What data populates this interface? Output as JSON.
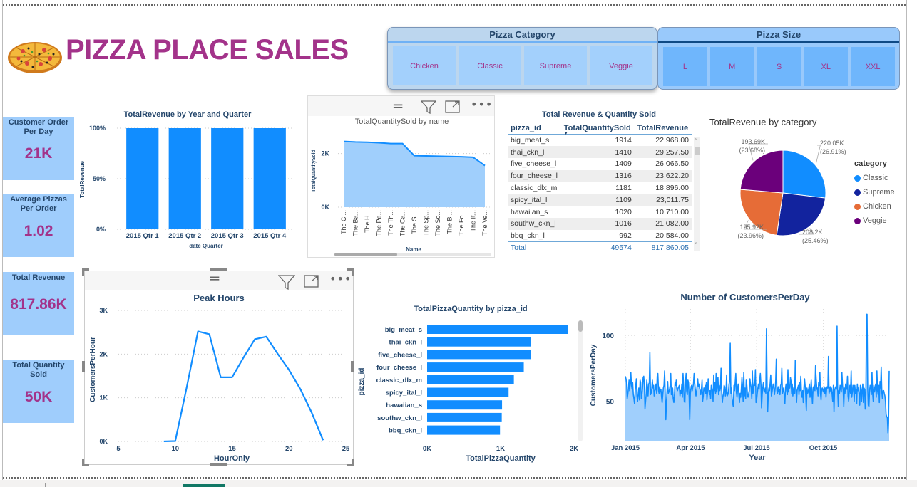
{
  "header": {
    "title": "PIZZA PLACE SALES",
    "logo_icon": "pizza-icon"
  },
  "slicers": {
    "category": {
      "title": "Pizza Category",
      "options": [
        "Chicken",
        "Classic",
        "Supreme",
        "Veggie"
      ]
    },
    "size": {
      "title": "Pizza Size",
      "options": [
        "L",
        "M",
        "S",
        "XL",
        "XXL"
      ]
    }
  },
  "cards": [
    {
      "label_line1": "Customer Order",
      "label_line2": "Per Day",
      "value": "21K"
    },
    {
      "label_line1": "Average Pizzas",
      "label_line2": "Per Order",
      "value": "1.02"
    },
    {
      "label_line1": "Total Revenue",
      "label_line2": "",
      "value": "817.86K"
    },
    {
      "label_line1": "Total Quantity",
      "label_line2": "Sold",
      "value": "50K"
    }
  ],
  "visual_header_icons": [
    "drag-handle-icon",
    "filter-icon",
    "focus-mode-icon",
    "more-options-icon"
  ],
  "table": {
    "title": "Total Revenue & Quantity Sold",
    "columns": [
      "pizza_id",
      "TotalQuantitySold",
      "TotalRevenue"
    ],
    "sorted_column": "TotalQuantitySold",
    "rows": [
      [
        "big_meat_s",
        "1914",
        "22,968.00"
      ],
      [
        "thai_ckn_l",
        "1410",
        "29,257.50"
      ],
      [
        "five_cheese_l",
        "1409",
        "26,066.50"
      ],
      [
        "four_cheese_l",
        "1316",
        "23,622.20"
      ],
      [
        "classic_dlx_m",
        "1181",
        "18,896.00"
      ],
      [
        "spicy_ital_l",
        "1109",
        "23,011.75"
      ],
      [
        "hawaiian_s",
        "1020",
        "10,710.00"
      ],
      [
        "southw_ckn_l",
        "1016",
        "21,082.00"
      ],
      [
        "bbq_ckn_l",
        "992",
        "20,584.00"
      ]
    ],
    "total": [
      "Total",
      "49574",
      "817,860.05"
    ]
  },
  "colors": {
    "accent": "#118dff",
    "area_fill": "#a0cffc",
    "title_magenta": "#a3338a",
    "label_navy": "#24466b",
    "card_bg": "#9fcdfc",
    "pie_classic": "#118dff",
    "pie_supreme": "#12239e",
    "pie_chicken": "#e66c37",
    "pie_veggie": "#6b007b"
  },
  "chart_data": [
    {
      "id": "revenue-by-quarter",
      "type": "bar",
      "title": "TotalRevenue by Year and Quarter",
      "xlabel": "date Quarter",
      "ylabel": "TotalRevenue",
      "categories": [
        "2015 Qtr 1",
        "2015 Qtr 2",
        "2015 Qtr 3",
        "2015 Qtr 4"
      ],
      "values": [
        100,
        100,
        100,
        100
      ],
      "yticks": [
        "0%",
        "50%",
        "100%"
      ],
      "ylim": [
        0,
        100
      ],
      "grid": true
    },
    {
      "id": "quantity-by-name",
      "type": "area",
      "title": "TotalQuantitySold by name",
      "xlabel": "Name",
      "ylabel": "TotalQuantitySold",
      "categories": [
        "The Cl...",
        "The Ba...",
        "The H...",
        "The Pe...",
        "The Th...",
        "The Ca...",
        "The Si...",
        "The Sp...",
        "The So...",
        "The Bi...",
        "The Fo...",
        "The It...",
        "The Ve..."
      ],
      "values": [
        2450,
        2430,
        2420,
        2400,
        2370,
        2370,
        1920,
        1910,
        1900,
        1890,
        1880,
        1860,
        1550
      ],
      "yticks": [
        "0K",
        "2K"
      ],
      "ylim": [
        0,
        2600
      ],
      "grid": true
    },
    {
      "id": "revenue-by-category",
      "type": "pie",
      "title": "TotalRevenue by category",
      "legend_title": "category",
      "legend_position": "right",
      "slices": [
        {
          "name": "Classic",
          "value": 220.05,
          "label": "220.05K",
          "pct": "(26.91%)"
        },
        {
          "name": "Supreme",
          "value": 208.2,
          "label": "208.2K",
          "pct": "(25.46%)"
        },
        {
          "name": "Chicken",
          "value": 195.92,
          "label": "195.92K",
          "pct": "(23.96%)"
        },
        {
          "name": "Veggie",
          "value": 193.69,
          "label": "193.69K",
          "pct": "(23.68%)"
        }
      ]
    },
    {
      "id": "peak-hours",
      "type": "line",
      "title": "Peak Hours",
      "xlabel": "HourOnly",
      "ylabel": "CustomersPerHour",
      "x": [
        9,
        10,
        11,
        12,
        13,
        14,
        15,
        16,
        17,
        18,
        19,
        20,
        21,
        22,
        23
      ],
      "y": [
        1,
        8,
        1230,
        2520,
        2455,
        1470,
        1470,
        1920,
        2340,
        2400,
        2010,
        1640,
        1200,
        660,
        28
      ],
      "xticks": [
        5,
        10,
        15,
        20,
        25
      ],
      "yticks": [
        "0K",
        "1K",
        "2K",
        "3K"
      ],
      "xlim": [
        5,
        25
      ],
      "ylim": [
        0,
        3000
      ],
      "grid": true
    },
    {
      "id": "pizza-quantity-by-id",
      "type": "bar",
      "orientation": "horizontal",
      "title": "TotalPizzaQuantity by pizza_id",
      "xlabel": "TotalPizzaQuantity",
      "ylabel": "pizza_id",
      "categories": [
        "big_meat_s",
        "thai_ckn_l",
        "five_cheese_l",
        "four_cheese_l",
        "classic_dlx_m",
        "spicy_ital_l",
        "hawaiian_s",
        "southw_ckn_l",
        "bbq_ckn_l"
      ],
      "values": [
        1914,
        1410,
        1409,
        1316,
        1181,
        1109,
        1020,
        1016,
        992
      ],
      "xticks": [
        "0K",
        "1K",
        "2K"
      ],
      "xlim": [
        0,
        2000
      ]
    },
    {
      "id": "customers-per-day",
      "type": "area",
      "title": "Number of CustomersPerDay",
      "xlabel": "Year",
      "ylabel": "CustomersPerDay",
      "xticks": [
        "Jan 2015",
        "Apr 2015",
        "Jul 2015",
        "Oct 2015"
      ],
      "yticks": [
        50,
        100
      ],
      "ylim": [
        20,
        120
      ],
      "values": [
        69,
        67,
        64,
        52,
        55,
        60,
        66,
        58,
        64,
        72,
        62,
        59,
        64,
        55,
        52,
        48,
        58,
        62,
        67,
        54,
        50,
        56,
        60,
        51,
        66,
        64,
        52,
        55,
        60,
        68,
        69,
        62,
        44,
        50,
        56,
        66,
        60,
        54,
        63,
        64,
        87,
        55,
        56,
        59,
        66,
        60,
        62,
        54,
        58,
        59,
        63,
        56,
        69,
        71,
        58,
        56,
        61,
        57,
        59,
        53,
        49,
        55,
        60,
        62,
        73,
        55,
        36,
        50,
        58,
        65,
        56,
        57,
        59,
        62,
        71,
        55,
        57,
        60,
        52,
        49,
        54,
        64,
        62,
        66,
        59,
        58,
        60,
        61,
        62,
        54,
        58,
        56,
        63,
        53,
        71,
        62,
        50,
        49,
        64,
        71,
        58,
        55,
        66,
        64,
        53,
        36,
        56,
        60,
        62,
        58,
        61,
        63,
        71,
        64,
        59,
        54,
        57,
        62,
        67,
        61,
        63,
        60,
        58,
        55,
        59,
        66,
        50,
        54,
        60,
        58,
        62,
        56,
        64,
        51,
        57,
        67,
        59,
        55,
        58,
        52,
        62,
        60,
        57,
        50,
        70,
        58,
        64,
        56,
        71,
        57,
        62,
        68,
        55,
        62,
        58,
        60,
        75,
        58,
        49,
        53,
        56,
        62,
        61,
        54,
        56,
        70,
        54,
        55,
        57,
        63,
        65,
        94,
        56,
        60,
        52,
        48,
        46,
        62,
        58,
        64,
        71,
        57,
        53,
        60,
        63,
        55,
        49,
        56,
        53,
        59,
        68,
        61,
        50,
        72,
        54,
        60,
        52,
        66,
        62,
        55,
        53,
        56,
        58,
        67,
        63,
        60,
        52,
        73,
        56,
        59,
        64,
        62,
        74,
        49,
        51,
        56,
        60,
        63,
        59,
        66,
        71,
        62,
        45,
        55,
        60,
        64,
        58,
        57,
        60,
        56,
        105,
        62,
        42,
        56,
        60,
        58,
        64,
        70,
        54,
        57,
        60,
        63,
        61,
        55,
        59,
        65,
        82,
        58,
        56,
        61,
        57,
        59,
        55,
        62,
        63,
        75,
        56,
        58,
        60,
        54,
        48,
        60,
        63,
        58,
        55,
        74,
        57,
        62,
        60,
        68,
        65,
        56,
        63,
        54,
        59,
        61,
        56,
        81,
        61,
        49,
        58,
        60,
        62,
        55,
        64,
        58,
        69,
        56,
        53,
        58,
        49,
        60,
        67,
        62,
        54,
        43,
        60,
        56,
        57,
        60,
        63,
        53,
        59,
        66,
        56,
        48,
        60,
        61,
        62,
        58,
        77,
        67,
        59,
        60,
        54,
        64,
        62,
        72,
        56,
        51,
        59,
        60,
        58,
        57,
        61,
        56,
        60,
        53,
        59,
        61,
        60,
        84,
        56,
        58,
        61,
        57,
        60,
        55,
        50,
        62,
        42,
        58,
        60,
        61,
        59,
        107,
        60,
        46,
        58,
        56,
        62,
        60,
        57,
        72,
        62,
        58,
        46,
        60,
        56,
        63,
        60,
        59,
        69,
        54,
        50,
        58,
        62,
        56,
        73,
        53,
        57,
        62,
        60,
        50,
        62,
        56,
        59,
        48,
        63,
        58,
        60,
        55,
        47,
        62,
        60,
        50,
        58,
        63,
        49,
        60,
        59,
        44,
        55,
        116,
        116,
        60,
        47,
        46,
        58,
        62,
        60,
        55,
        72,
        56,
        50,
        62,
        57,
        60,
        63,
        53,
        73,
        58,
        55,
        62,
        49,
        65,
        60,
        76,
        57,
        52,
        58,
        58,
        56,
        54,
        50,
        40,
        38,
        38,
        26,
        34,
        73
      ]
    }
  ]
}
